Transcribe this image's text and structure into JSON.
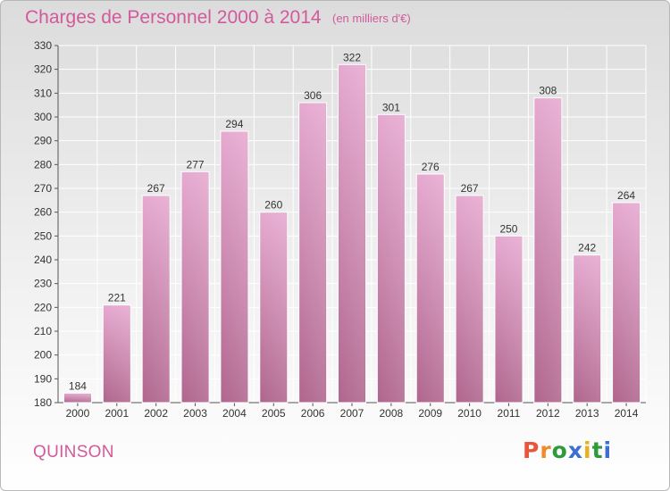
{
  "header": {
    "title": "Charges de Personnel 2000 à 2014",
    "unit_note": "(en milliers d'€)"
  },
  "footer": {
    "place": "QUINSON",
    "brand": "Proxiti"
  },
  "colors": {
    "bar_top": "#e6a9d0",
    "bar_bottom": "#b0668e",
    "bar_border": "#ffffff",
    "text_accent": "#d25a9b",
    "brand_letters": [
      "#e8553a",
      "#f08a2a",
      "#2e9a3a",
      "#3b6fd1",
      "#e8b020",
      "#2e9a3a",
      "#3b6fd1"
    ]
  },
  "chart_data": {
    "type": "bar",
    "title": "Charges de Personnel 2000 à 2014",
    "subtitle": "(en milliers d'€)",
    "xlabel": "",
    "ylabel": "",
    "categories": [
      "2000",
      "2001",
      "2002",
      "2003",
      "2004",
      "2005",
      "2006",
      "2007",
      "2008",
      "2009",
      "2010",
      "2011",
      "2012",
      "2013",
      "2014"
    ],
    "values": [
      184,
      221,
      267,
      277,
      294,
      260,
      306,
      322,
      301,
      276,
      267,
      250,
      308,
      242,
      264
    ],
    "ylim": [
      180,
      330
    ],
    "yticks": [
      180,
      190,
      200,
      210,
      220,
      230,
      240,
      250,
      260,
      270,
      280,
      290,
      300,
      310,
      320,
      330
    ],
    "grid": true,
    "legend": "none"
  }
}
